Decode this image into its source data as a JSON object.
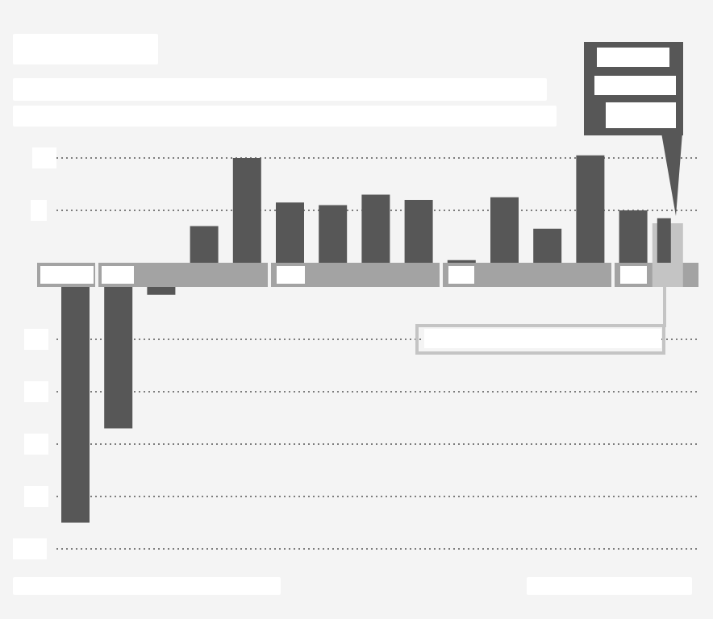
{
  "title": "",
  "subtitle": "",
  "source": "",
  "credit": "",
  "callout": {
    "latest_label": "",
    "note": ""
  },
  "colors": {
    "background": "#f4f4f4",
    "bar": "#575757",
    "axis_band": "#a3a3a3",
    "highlight": "#c4c4c4",
    "grid": "#555555",
    "callout_box": "#575757"
  },
  "chart_data": {
    "type": "bar",
    "title": "",
    "xlabel": "",
    "ylabel": "",
    "ylim": [
      -5,
      2
    ],
    "yticks": [
      2,
      1,
      0,
      -1,
      -2,
      -3,
      -4,
      -5
    ],
    "tick_labels": [
      "",
      "",
      "",
      "",
      "",
      "",
      "",
      ""
    ],
    "year_groups": [
      {
        "label": "",
        "start": 0,
        "end": 0
      },
      {
        "label": "",
        "start": 1,
        "end": 3
      },
      {
        "label": "",
        "start": 4,
        "end": 7
      },
      {
        "label": "",
        "start": 8,
        "end": 11
      },
      {
        "label": "",
        "start": 12,
        "end": 14
      }
    ],
    "values": [
      -4.5,
      -2.7,
      -0.15,
      0.7,
      2.0,
      1.15,
      1.1,
      1.3,
      1.2,
      0.05,
      1.25,
      0.65,
      2.05,
      1.0,
      0.85
    ],
    "highlight_index": 14,
    "grid": "dotted",
    "legend": "none"
  }
}
